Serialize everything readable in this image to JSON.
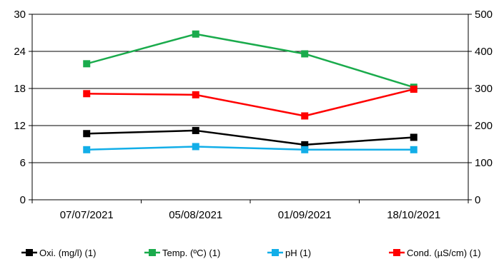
{
  "chart_data": {
    "type": "line",
    "categories": [
      "07/07/2021",
      "05/08/2021",
      "01/09/2021",
      "18/10/2021"
    ],
    "y_left": {
      "min": 0,
      "max": 30,
      "ticks": [
        0,
        6,
        12,
        18,
        24,
        30
      ]
    },
    "y_right": {
      "min": 0,
      "max": 500,
      "ticks": [
        0,
        100,
        200,
        300,
        400,
        500
      ]
    },
    "grid": "horizontal",
    "legend_position": "bottom",
    "series": [
      {
        "name": "Oxi. (mg/l) (1)",
        "axis": "left",
        "color": "#000000",
        "values": [
          10.7,
          11.2,
          8.9,
          10.1
        ]
      },
      {
        "name": "Temp. (ºC) (1)",
        "axis": "left",
        "color": "#1aab4c",
        "values": [
          22.0,
          26.8,
          23.6,
          18.2
        ]
      },
      {
        "name": "pH (1)",
        "axis": "left",
        "color": "#12aee8",
        "values": [
          8.1,
          8.6,
          8.1,
          8.1
        ]
      },
      {
        "name": "Cond. (µS/cm) (1)",
        "axis": "right",
        "color": "#ff0000",
        "values": [
          286,
          283,
          226,
          298
        ]
      }
    ]
  }
}
